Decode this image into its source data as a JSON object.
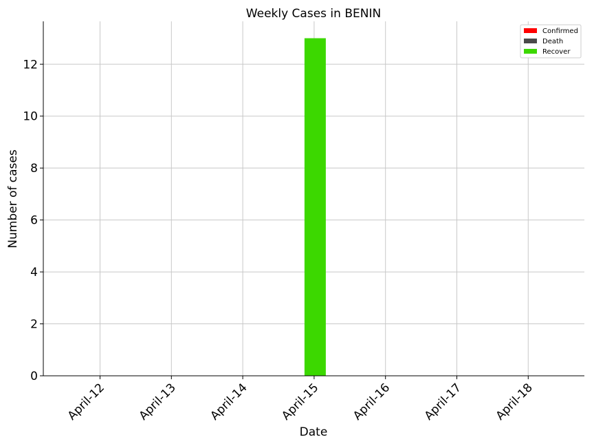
{
  "chart_data": {
    "type": "bar",
    "title": "Weekly Cases in BENIN",
    "xlabel": "Date",
    "ylabel": "Number of cases",
    "categories": [
      "April-12",
      "April-13",
      "April-14",
      "April-15",
      "April-16",
      "April-17",
      "April-18"
    ],
    "series": [
      {
        "name": "Confirmed",
        "color": "#ff0000",
        "values": [
          0,
          0,
          0,
          0,
          0,
          0,
          0
        ]
      },
      {
        "name": "Death",
        "color": "#4a4a4a",
        "values": [
          0,
          0,
          0,
          0,
          0,
          0,
          0
        ]
      },
      {
        "name": "Recover",
        "color": "#3cd800",
        "values": [
          0,
          0,
          0,
          13,
          0,
          0,
          0
        ]
      }
    ],
    "ylim": [
      0,
      13.65
    ],
    "yticks": [
      0,
      2,
      4,
      6,
      8,
      10,
      12
    ],
    "grid": true,
    "legend_position": "top-right"
  }
}
